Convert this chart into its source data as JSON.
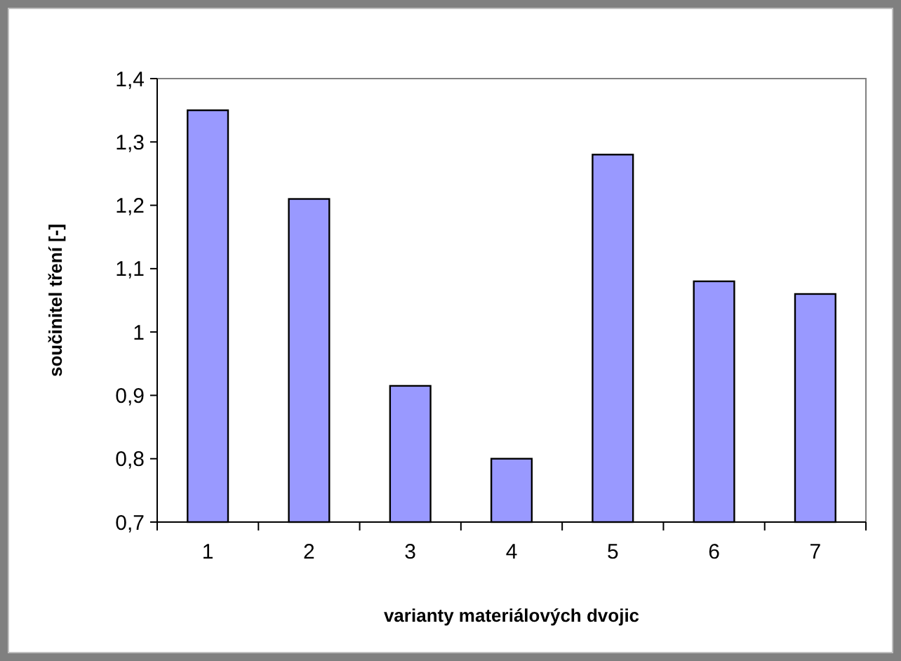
{
  "chart_data": {
    "type": "bar",
    "xlabel": "varianty materiálových dvojic",
    "ylabel": "součinitel tření [-]",
    "categories": [
      "1",
      "2",
      "3",
      "4",
      "5",
      "6",
      "7"
    ],
    "values": [
      1.35,
      1.21,
      0.915,
      0.8,
      1.28,
      1.08,
      1.06
    ],
    "color": "#9999ff",
    "ylim": [
      0.7,
      1.4
    ],
    "yticks": [
      {
        "value": 0.7,
        "label": "0,7"
      },
      {
        "value": 0.8,
        "label": "0,8"
      },
      {
        "value": 0.9,
        "label": "0,9"
      },
      {
        "value": 1,
        "label": "1"
      },
      {
        "value": 1.1,
        "label": "1,1"
      },
      {
        "value": 1.2,
        "label": "1,2"
      },
      {
        "value": 1.3,
        "label": "1,3"
      },
      {
        "value": 1.4,
        "label": "1,4"
      }
    ],
    "grid": false
  }
}
